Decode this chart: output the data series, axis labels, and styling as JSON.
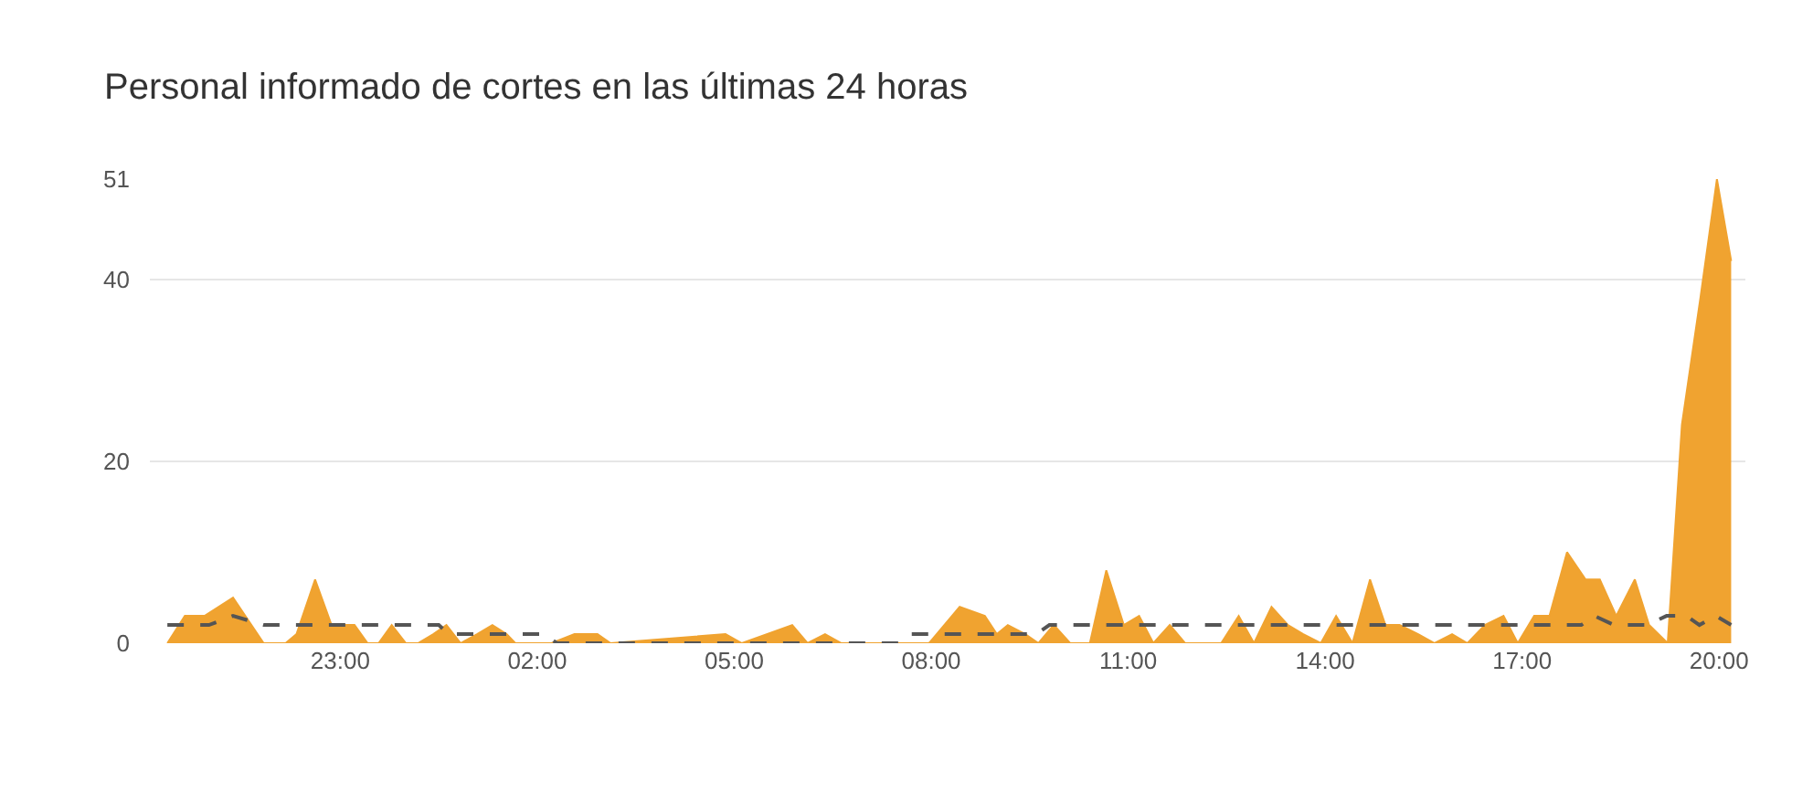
{
  "chart_data": {
    "type": "area",
    "title": "Personal informado de cortes en las últimas 24 horas",
    "xlim": [
      "--01-01T20:06",
      "--01-02T20:24"
    ],
    "xticks": [
      {
        "value": "--01-01T23:00",
        "label": "23:00"
      },
      {
        "value": "--01-02T02:00",
        "label": "02:00"
      },
      {
        "value": "--01-02T05:00",
        "label": "05:00"
      },
      {
        "value": "--01-02T08:00",
        "label": "08:00"
      },
      {
        "value": "--01-02T11:00",
        "label": "11:00"
      },
      {
        "value": "--01-02T14:00",
        "label": "14:00"
      },
      {
        "value": "--01-02T17:00",
        "label": "17:00"
      },
      {
        "value": "--01-02T20:00",
        "label": "20:00"
      }
    ],
    "ylim": [
      0,
      51
    ],
    "yticks": [
      0,
      20,
      40,
      51
    ],
    "grid": "y",
    "legend": false,
    "series": [
      {
        "color": "#f0a330",
        "x": [
          "--01-01T20:22",
          "--01-01T20:38",
          "--01-01T20:56",
          "--01-01T21:22",
          "--01-01T21:50",
          "--01-01T22:10",
          "--01-01T22:20",
          "--01-01T22:37",
          "--01-01T22:52",
          "--01-01T23:13",
          "--01-01T23:25",
          "--01-01T23:35",
          "--01-01T23:47",
          "--01-02T00:00",
          "--01-02T00:11",
          "--01-02T00:25",
          "--01-02T00:37",
          "--01-02T00:50",
          "--01-02T01:05",
          "--01-02T01:19",
          "--01-02T01:32",
          "--01-02T01:40",
          "--01-02T02:13",
          "--01-02T02:34",
          "--01-02T02:55",
          "--01-02T03:07",
          "--01-02T04:52",
          "--01-02T05:07",
          "--01-02T05:53",
          "--01-02T06:07",
          "--01-02T06:23",
          "--01-02T06:38",
          "--01-02T07:20",
          "--01-02T07:58",
          "--01-02T08:26",
          "--01-02T08:49",
          "--01-02T09:00",
          "--01-02T09:10",
          "--01-02T09:26",
          "--01-02T09:38",
          "--01-02T09:52",
          "--01-02T10:07",
          "--01-02T10:25",
          "--01-02T10:40",
          "--01-02T10:56",
          "--01-02T11:10",
          "--01-02T11:23",
          "--01-02T11:38",
          "--01-02T11:52",
          "--01-02T12:25",
          "--01-02T12:41",
          "--01-02T12:55",
          "--01-02T13:11",
          "--01-02T13:26",
          "--01-02T13:40",
          "--01-02T13:56",
          "--01-02T14:10",
          "--01-02T14:25",
          "--01-02T14:41",
          "--01-02T14:55",
          "--01-02T15:08",
          "--01-02T15:25",
          "--01-02T15:40",
          "--01-02T15:56",
          "--01-02T16:10",
          "--01-02T16:26",
          "--01-02T16:43",
          "--01-02T16:56",
          "--01-02T17:11",
          "--01-02T17:25",
          "--01-02T17:41",
          "--01-02T17:58",
          "--01-02T18:11",
          "--01-02T18:26",
          "--01-02T18:43",
          "--01-02T18:56",
          "--01-02T19:13",
          "--01-02T19:26",
          "--01-02T19:43",
          "--01-02T19:58",
          "--01-02T20:11"
        ],
        "values": [
          0,
          3,
          3,
          5,
          0,
          0,
          1,
          7,
          2,
          2,
          0,
          0,
          2,
          0,
          0,
          1,
          2,
          0,
          1,
          2,
          1,
          0,
          0,
          1,
          1,
          0,
          1,
          0,
          2,
          0,
          1,
          0,
          0,
          0,
          4,
          3,
          1,
          2,
          1,
          0,
          2,
          0,
          0,
          8,
          2,
          3,
          0,
          2,
          0,
          0,
          3,
          0,
          4,
          2,
          1,
          0,
          3,
          0,
          7,
          2,
          2,
          1,
          0,
          1,
          0,
          2,
          3,
          0,
          3,
          3,
          10,
          7,
          7,
          3,
          7,
          2,
          0,
          24,
          38,
          51,
          42
        ]
      },
      {
        "type": "line",
        "color": "#555555",
        "line_style": "dashed",
        "x": [
          "--01-01T20:22",
          "--01-01T21:00",
          "--01-01T21:22",
          "--01-01T21:50",
          "--01-02T00:30",
          "--01-02T00:39",
          "--01-02T02:06",
          "--01-02T02:18",
          "--01-02T07:30",
          "--01-02T07:42",
          "--01-02T09:36",
          "--01-02T09:48",
          "--01-02T17:54",
          "--01-02T18:06",
          "--01-02T18:24",
          "--01-02T18:54",
          "--01-02T19:12",
          "--01-02T19:30",
          "--01-02T19:42",
          "--01-02T19:57",
          "--01-02T20:11"
        ],
        "values": [
          2,
          2,
          3,
          2,
          2,
          1,
          1,
          0,
          0,
          1,
          1,
          2,
          2,
          3,
          2,
          2,
          3,
          3,
          2,
          3,
          2
        ]
      }
    ]
  }
}
